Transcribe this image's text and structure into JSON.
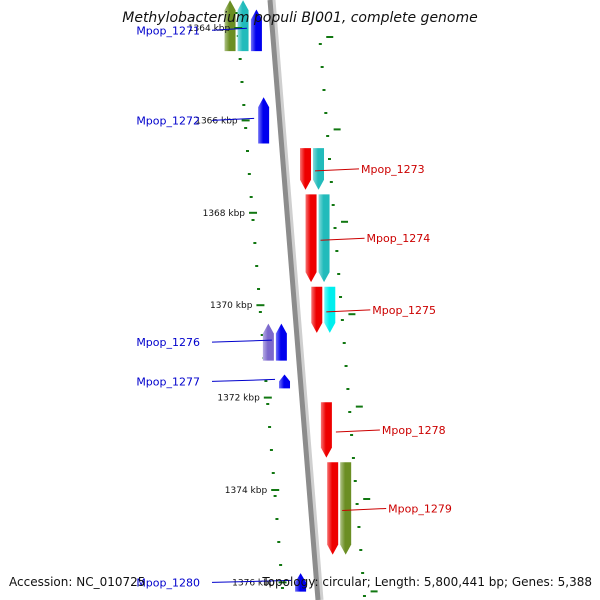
{
  "title": "Methylobacterium populi BJ001, complete genome",
  "footer": {
    "accession": "Accession: NC_010725",
    "summary": "Topology: circular; Length: 5,800,441 bp; Genes: 5,388"
  },
  "scale": {
    "unit": "kbp",
    "ticks": [
      {
        "label": "1364 kbp",
        "kbp": 1364
      },
      {
        "label": "1366 kbp",
        "kbp": 1366
      },
      {
        "label": "1368 kbp",
        "kbp": 1368
      },
      {
        "label": "1370 kbp",
        "kbp": 1370
      },
      {
        "label": "1372 kbp",
        "kbp": 1372
      },
      {
        "label": "1374 kbp",
        "kbp": 1374
      },
      {
        "label": "1376 kbp",
        "kbp": 1376
      }
    ]
  },
  "colors": {
    "backbone": "#8c8c8c",
    "minus_label": "#0000cc",
    "plus_label": "#cc0000",
    "tick": "#117711",
    "blue": "#0000ee",
    "red": "#ee0000",
    "cyan": "#22bbbb",
    "light_cyan": "#00eeee",
    "olive": "#6b8e23",
    "lavender": "#7b68cc"
  },
  "genes": [
    {
      "label": "Mpop_1271",
      "strand": "-",
      "start": 1363.6,
      "end": 1364.5,
      "color": "blue"
    },
    {
      "label": "Mpop_1272",
      "strand": "-",
      "start": 1365.5,
      "end": 1366.5,
      "color": "blue"
    },
    {
      "label": "Mpop_1273",
      "strand": "+",
      "start": 1366.6,
      "end": 1367.5,
      "color": "red"
    },
    {
      "label": "Mpop_1274",
      "strand": "+",
      "start": 1367.6,
      "end": 1369.5,
      "color": "red"
    },
    {
      "label": "Mpop_1275",
      "strand": "+",
      "start": 1369.6,
      "end": 1370.6,
      "color": "red"
    },
    {
      "label": "Mpop_1276",
      "strand": "-",
      "start": 1370.4,
      "end": 1371.2,
      "color": "blue"
    },
    {
      "label": "Mpop_1277",
      "strand": "-",
      "start": 1371.5,
      "end": 1371.8,
      "color": "blue"
    },
    {
      "label": "Mpop_1278",
      "strand": "+",
      "start": 1372.1,
      "end": 1373.3,
      "color": "red"
    },
    {
      "label": "Mpop_1279",
      "strand": "+",
      "start": 1373.4,
      "end": 1375.4,
      "color": "red"
    },
    {
      "label": "Mpop_1280",
      "strand": "-",
      "start": 1375.8,
      "end": 1376.2,
      "color": "blue"
    }
  ],
  "features": [
    {
      "strand": "-",
      "start": 1363.4,
      "end": 1364.5,
      "color": "olive"
    },
    {
      "strand": "-",
      "start": 1363.4,
      "end": 1364.5,
      "color": "cyan"
    },
    {
      "strand": "-",
      "start": 1370.4,
      "end": 1371.2,
      "color": "lavender"
    },
    {
      "strand": "+",
      "start": 1366.6,
      "end": 1367.5,
      "color": "cyan"
    },
    {
      "strand": "+",
      "start": 1367.6,
      "end": 1369.5,
      "color": "cyan"
    },
    {
      "strand": "+",
      "start": 1369.6,
      "end": 1370.6,
      "color": "light_cyan"
    },
    {
      "strand": "+",
      "start": 1373.4,
      "end": 1375.4,
      "color": "olive"
    }
  ]
}
